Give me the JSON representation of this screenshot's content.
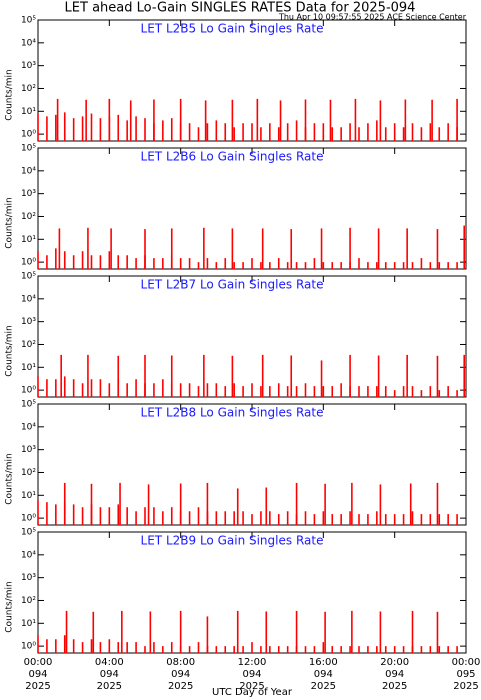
{
  "header": {
    "title": "LET ahead Lo-Gain SINGLES RATES Data for 2025-094",
    "subtitle": "Thu Apr 10 09:57:55 2025 ACE Science Center"
  },
  "chart_data": [
    {
      "type": "bar",
      "title": "LET L2B5 Lo Gain Singles Rate",
      "ylabel": "Counts/min",
      "log_y": true,
      "xlim": [
        0,
        24
      ],
      "xticks": [
        0,
        4,
        8,
        12,
        16,
        20,
        24
      ],
      "ylim": [
        0.5,
        100000
      ],
      "yticks": [
        {
          "value": 1,
          "label": "10⁰"
        },
        {
          "value": 10,
          "label": "10¹"
        },
        {
          "value": 100,
          "label": "10²"
        },
        {
          "value": 1000,
          "label": "10³"
        },
        {
          "value": 10000,
          "label": "10⁴"
        },
        {
          "value": 100000,
          "label": "10⁵"
        }
      ],
      "series": [
        {
          "color": "#ff0000",
          "x": [
            0,
            0.5,
            1,
            1.5,
            2,
            2.5,
            3,
            3.5,
            4,
            4.5,
            5,
            5.5,
            6,
            6.5,
            7,
            7.5,
            8,
            8.5,
            9,
            9.5,
            10,
            10.5,
            11,
            11.5,
            12,
            12.5,
            13,
            13.5,
            14,
            14.5,
            15,
            15.5,
            16,
            16.5,
            17,
            17.5,
            18,
            18.5,
            19,
            19.5,
            20,
            20.5,
            21,
            21.5,
            22,
            22.5,
            23,
            23.5
          ],
          "values": [
            8,
            6,
            7,
            9,
            5,
            6,
            8,
            5,
            6,
            7,
            4,
            6,
            5,
            3,
            4,
            5,
            3,
            3,
            2,
            3,
            4,
            3,
            2,
            3,
            3,
            2,
            3,
            2,
            3,
            4,
            2,
            3,
            3,
            2,
            2,
            3,
            2,
            3,
            4,
            2,
            3,
            2,
            3,
            2,
            3,
            2,
            3,
            2
          ]
        },
        {
          "color": "#ff0000",
          "x": [
            1.1,
            2.7,
            4.0,
            5.2,
            6.5,
            8.0,
            9.4,
            10.9,
            12.3,
            13.6,
            15.0,
            16.4,
            17.8,
            19.2,
            20.6,
            22.1,
            23.5
          ],
          "values": [
            35,
            32,
            35,
            30,
            33,
            35,
            30,
            32,
            35,
            30,
            33,
            32,
            35,
            30,
            33,
            32,
            35
          ]
        }
      ]
    },
    {
      "type": "bar",
      "title": "LET L2B6 Lo Gain Singles Rate",
      "ylabel": "Counts/min",
      "log_y": true,
      "xlim": [
        0,
        24
      ],
      "xticks": [
        0,
        4,
        8,
        12,
        16,
        20,
        24
      ],
      "ylim": [
        0.5,
        100000
      ],
      "yticks": [
        {
          "value": 1,
          "label": "10⁰"
        },
        {
          "value": 10,
          "label": "10¹"
        },
        {
          "value": 100,
          "label": "10²"
        },
        {
          "value": 1000,
          "label": "10³"
        },
        {
          "value": 10000,
          "label": "10⁴"
        },
        {
          "value": 100000,
          "label": "10⁵"
        }
      ],
      "series": [
        {
          "color": "#ff0000",
          "x": [
            0,
            0.5,
            1,
            1.5,
            2,
            2.5,
            3,
            3.5,
            4,
            4.5,
            5,
            5.5,
            6,
            6.5,
            7,
            7.5,
            8,
            8.5,
            9,
            9.5,
            10,
            10.5,
            11,
            11.5,
            12,
            12.5,
            13,
            13.5,
            14,
            14.5,
            15,
            15.5,
            16,
            16.5,
            17,
            17.5,
            18,
            18.5,
            19,
            19.5,
            20,
            20.5,
            21,
            21.5,
            22,
            22.5,
            23,
            23.5
          ],
          "values": [
            3,
            2,
            4,
            3,
            2,
            3,
            2,
            2,
            3,
            2,
            2,
            1.5,
            2,
            1.5,
            1.5,
            2,
            1.5,
            1.5,
            1,
            1.5,
            1,
            1.5,
            1,
            1,
            1.5,
            1,
            1,
            1.5,
            1,
            1,
            1,
            1.5,
            1,
            1,
            1,
            1,
            1.5,
            1,
            1,
            1,
            1,
            1,
            1,
            1.5,
            1,
            1,
            1,
            1
          ]
        },
        {
          "color": "#ff0000",
          "x": [
            1.2,
            2.8,
            4.1,
            6.0,
            7.5,
            9.3,
            10.9,
            12.6,
            14.2,
            15.9,
            17.5,
            19.1,
            20.7,
            22.4,
            23.9
          ],
          "values": [
            30,
            32,
            30,
            28,
            30,
            32,
            30,
            30,
            28,
            30,
            32,
            30,
            30,
            28,
            40
          ]
        }
      ]
    },
    {
      "type": "bar",
      "title": "LET L2B7 Lo Gain Singles Rate",
      "ylabel": "Counts/min",
      "log_y": true,
      "xlim": [
        0,
        24
      ],
      "xticks": [
        0,
        4,
        8,
        12,
        16,
        20,
        24
      ],
      "ylim": [
        0.5,
        100000
      ],
      "yticks": [
        {
          "value": 1,
          "label": "10⁰"
        },
        {
          "value": 10,
          "label": "10¹"
        },
        {
          "value": 100,
          "label": "10²"
        },
        {
          "value": 1000,
          "label": "10³"
        },
        {
          "value": 10000,
          "label": "10⁴"
        },
        {
          "value": 100000,
          "label": "10⁵"
        }
      ],
      "series": [
        {
          "color": "#ff0000",
          "x": [
            0,
            0.5,
            1,
            1.5,
            2,
            2.5,
            3,
            3.5,
            4,
            4.5,
            5,
            5.5,
            6,
            6.5,
            7,
            7.5,
            8,
            8.5,
            9,
            9.5,
            10,
            10.5,
            11,
            11.5,
            12,
            12.5,
            13,
            13.5,
            14,
            14.5,
            15,
            15.5,
            16,
            16.5,
            17,
            17.5,
            18,
            18.5,
            19,
            19.5,
            20,
            20.5,
            21,
            21.5,
            22,
            22.5,
            23,
            23.5
          ],
          "values": [
            4,
            3,
            3,
            4,
            3,
            2,
            3,
            3,
            2,
            3,
            2,
            3,
            2,
            2,
            3,
            2,
            2,
            2,
            1.5,
            2,
            2,
            1.5,
            2,
            1.5,
            2,
            1.5,
            1.5,
            2,
            1.5,
            1.5,
            2,
            1.5,
            1.5,
            1.5,
            2,
            1.5,
            1.5,
            1.5,
            1.5,
            1.5,
            1,
            1.5,
            1.5,
            1,
            1.5,
            1,
            1.5,
            1
          ]
        },
        {
          "color": "#ff0000",
          "x": [
            1.3,
            2.8,
            4.5,
            6.0,
            7.5,
            9.3,
            10.9,
            12.6,
            14.2,
            15.9,
            17.5,
            19.1,
            20.7,
            22.4,
            23.9
          ],
          "values": [
            35,
            35,
            32,
            35,
            33,
            35,
            32,
            35,
            33,
            20,
            35,
            33,
            35,
            32,
            35
          ]
        }
      ]
    },
    {
      "type": "bar",
      "title": "LET L2B8 Lo Gain Singles Rate",
      "ylabel": "Counts/min",
      "log_y": true,
      "xlim": [
        0,
        24
      ],
      "xticks": [
        0,
        4,
        8,
        12,
        16,
        20,
        24
      ],
      "ylim": [
        0.5,
        100000
      ],
      "yticks": [
        {
          "value": 1,
          "label": "10⁰"
        },
        {
          "value": 10,
          "label": "10¹"
        },
        {
          "value": 100,
          "label": "10²"
        },
        {
          "value": 1000,
          "label": "10³"
        },
        {
          "value": 10000,
          "label": "10⁴"
        },
        {
          "value": 100000,
          "label": "10⁵"
        }
      ],
      "series": [
        {
          "color": "#ff0000",
          "x": [
            0,
            0.5,
            1,
            1.5,
            2,
            2.5,
            3,
            3.5,
            4,
            4.5,
            5,
            5.5,
            6,
            6.5,
            7,
            7.5,
            8,
            8.5,
            9,
            9.5,
            10,
            10.5,
            11,
            11.5,
            12,
            12.5,
            13,
            13.5,
            14,
            14.5,
            15,
            15.5,
            16,
            16.5,
            17,
            17.5,
            18,
            18.5,
            19,
            19.5,
            20,
            20.5,
            21,
            21.5,
            22,
            22.5,
            23,
            23.5
          ],
          "values": [
            6,
            5,
            4,
            5,
            4,
            3,
            4,
            3,
            3,
            4,
            3,
            2,
            3,
            3,
            2,
            3,
            2,
            2,
            3,
            2,
            2,
            2,
            2,
            2,
            1.5,
            2,
            2,
            1.5,
            2,
            1.5,
            2,
            1.5,
            2,
            1.5,
            1.5,
            2,
            1.5,
            1.5,
            2,
            1.5,
            1.5,
            1.5,
            2,
            1.5,
            1.5,
            1.5,
            1.5,
            1.5
          ]
        },
        {
          "color": "#ff0000",
          "x": [
            1.5,
            3.0,
            4.6,
            6.2,
            8.0,
            9.5,
            11.2,
            12.8,
            14.5,
            16.1,
            17.6,
            19.2,
            20.9,
            22.4
          ],
          "values": [
            35,
            32,
            35,
            30,
            33,
            35,
            20,
            22,
            35,
            32,
            35,
            30,
            33,
            35
          ]
        }
      ]
    },
    {
      "type": "bar",
      "title": "LET L2B9 Lo Gain Singles Rate",
      "ylabel": "Counts/min",
      "log_y": true,
      "xlim": [
        0,
        24
      ],
      "ylim": [
        0.5,
        100000
      ],
      "xticks": [
        {
          "value": 0,
          "label": "00:00"
        },
        {
          "value": 4,
          "label": "04:00"
        },
        {
          "value": 8,
          "label": "08:00"
        },
        {
          "value": 12,
          "label": "12:00"
        },
        {
          "value": 16,
          "label": "16:00"
        },
        {
          "value": 20,
          "label": "20:00"
        },
        {
          "value": 24,
          "label": "00:00"
        }
      ],
      "xtick_sublabels": [
        [
          "094",
          "2025"
        ],
        [
          "094",
          "2025"
        ],
        [
          "094",
          "2025"
        ],
        [
          "094",
          "2025"
        ],
        [
          "094",
          "2025"
        ],
        [
          "094",
          "2025"
        ],
        [
          "095",
          "2025"
        ]
      ],
      "xlabel": "UTC Day of Year",
      "yticks": [
        {
          "value": 1,
          "label": "10⁰"
        },
        {
          "value": 10,
          "label": "10¹"
        },
        {
          "value": 100,
          "label": "10²"
        },
        {
          "value": 1000,
          "label": "10³"
        },
        {
          "value": 10000,
          "label": "10⁴"
        },
        {
          "value": 100000,
          "label": "10⁵"
        }
      ],
      "series": [
        {
          "color": "#ff0000",
          "x": [
            0,
            0.5,
            1,
            1.5,
            2,
            2.5,
            3,
            3.5,
            4,
            4.5,
            5,
            5.5,
            6,
            6.5,
            7,
            7.5,
            8,
            8.5,
            9,
            9.5,
            10,
            10.5,
            11,
            11.5,
            12,
            12.5,
            13,
            13.5,
            14,
            14.5,
            15,
            15.5,
            16,
            16.5,
            17,
            17.5,
            18,
            18.5,
            19,
            19.5,
            20,
            20.5,
            21,
            21.5,
            22,
            22.5,
            23,
            23.5
          ],
          "values": [
            3,
            2,
            2,
            3,
            2,
            1.5,
            2,
            1.5,
            2,
            1.5,
            1.5,
            1.5,
            1,
            1.5,
            1,
            1.5,
            1,
            1,
            1.5,
            1,
            1,
            1,
            1,
            1,
            1.5,
            1,
            1,
            1,
            1,
            1,
            1,
            1,
            1.5,
            1,
            1,
            1,
            1,
            1,
            1,
            1,
            1,
            1,
            1,
            1,
            1,
            1,
            1,
            1
          ]
        },
        {
          "color": "#ff0000",
          "x": [
            1.6,
            3.1,
            4.7,
            6.3,
            8.0,
            9.5,
            11.2,
            12.8,
            14.5,
            16.1,
            17.6,
            19.2,
            21.0,
            22.4
          ],
          "values": [
            35,
            32,
            35,
            33,
            35,
            20,
            35,
            33,
            35,
            32,
            35,
            33,
            35,
            32
          ]
        }
      ]
    }
  ]
}
